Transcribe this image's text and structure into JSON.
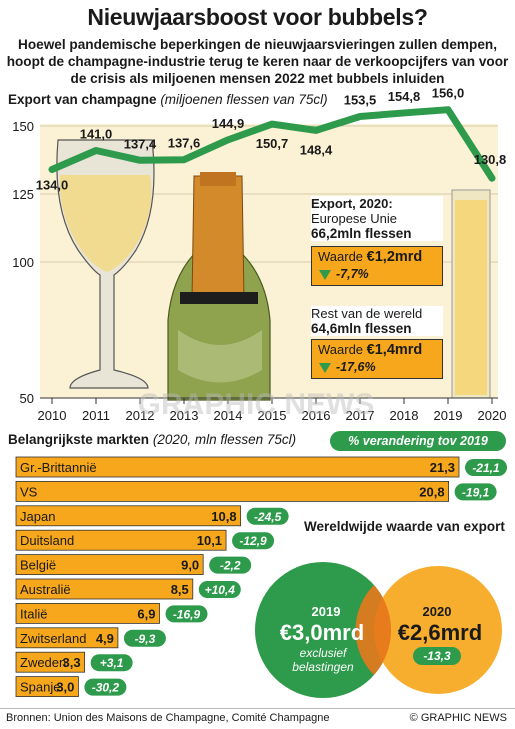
{
  "title": "Nieuwjaarsboost voor bubbels?",
  "subtitle": "Hoewel pandemische beperkingen de nieuwjaarsvieringen zullen dempen, hoopt de champagne-industrie terug te keren naar de verkoopcijfers van voor de crisis als miljoenen mensen 2022 met bubbels inluiden",
  "colors": {
    "accent": "#f6a71c",
    "green": "#2e9a4b",
    "panel": "#fbf1d4"
  },
  "chart_data": [
    {
      "type": "line",
      "title": "Export van champagne",
      "unit": "(miljoenen flessen van 75cl)",
      "x": [
        "2010",
        "2011",
        "2012",
        "2013",
        "2014",
        "2015",
        "2016",
        "2017",
        "2018",
        "2019",
        "2020"
      ],
      "values": [
        134.0,
        141.0,
        137.4,
        137.6,
        144.9,
        150.7,
        148.4,
        153.5,
        154.8,
        156.0,
        130.8
      ],
      "value_labels": [
        "134,0",
        "141,0",
        "137,4",
        "137,6",
        "144,9",
        "150,7",
        "148,4",
        "153,5",
        "154,8",
        "156,0",
        "130,8"
      ],
      "y_ticks": [
        50,
        100,
        125,
        150
      ],
      "y_tick_labels": [
        "50",
        "100",
        "125",
        "150"
      ],
      "y_axis_break": true
    },
    {
      "type": "bar",
      "title": "Belangrijkste markten",
      "unit": "(2020, mln flessen 75cl)",
      "pct_header": "% verandering tov 2019",
      "categories": [
        "Gr.-Brittannië",
        "VS",
        "Japan",
        "Duitsland",
        "België",
        "Australië",
        "Italië",
        "Zwitserland",
        "Zweden",
        "Spanje"
      ],
      "values": [
        21.3,
        20.8,
        10.8,
        10.1,
        9.0,
        8.5,
        6.9,
        4.9,
        3.3,
        3.0
      ],
      "value_labels": [
        "21,3",
        "20,8",
        "10,8",
        "10,1",
        "9,0",
        "8,5",
        "6,9",
        "4,9",
        "3,3",
        "3,0"
      ],
      "pct_change": [
        "-21,1",
        "-19,1",
        "-24,5",
        "-12,9",
        "-2,2",
        "+10,4",
        "-16,9",
        "-9,3",
        "+3,1",
        "-30,2"
      ]
    }
  ],
  "export_info": {
    "eu": {
      "line1": "Export, 2020:",
      "line2": "Europese Unie",
      "line3": "66,2mln flessen",
      "value_prefix": "Waarde ",
      "value": "€1,2mrd",
      "change": "-7,7%"
    },
    "rest": {
      "line2": "Rest van de wereld",
      "line3": "64,6mln flessen",
      "value_prefix": "Waarde ",
      "value": "€1,4mrd",
      "change": "-17,6%"
    }
  },
  "world": {
    "title": "Wereldwijde waarde van export",
    "y2019": "2019",
    "v2019": "€3,0mrd",
    "note": "exclusief belastingen",
    "y2020": "2020",
    "v2020": "€2,6mrd",
    "change2020": "-13,3"
  },
  "watermark": "GRAPHIC NEWS",
  "footer": {
    "source": "Bronnen: Union des Maisons de Champagne, Comité Champagne",
    "brand": "© GRAPHIC NEWS"
  }
}
